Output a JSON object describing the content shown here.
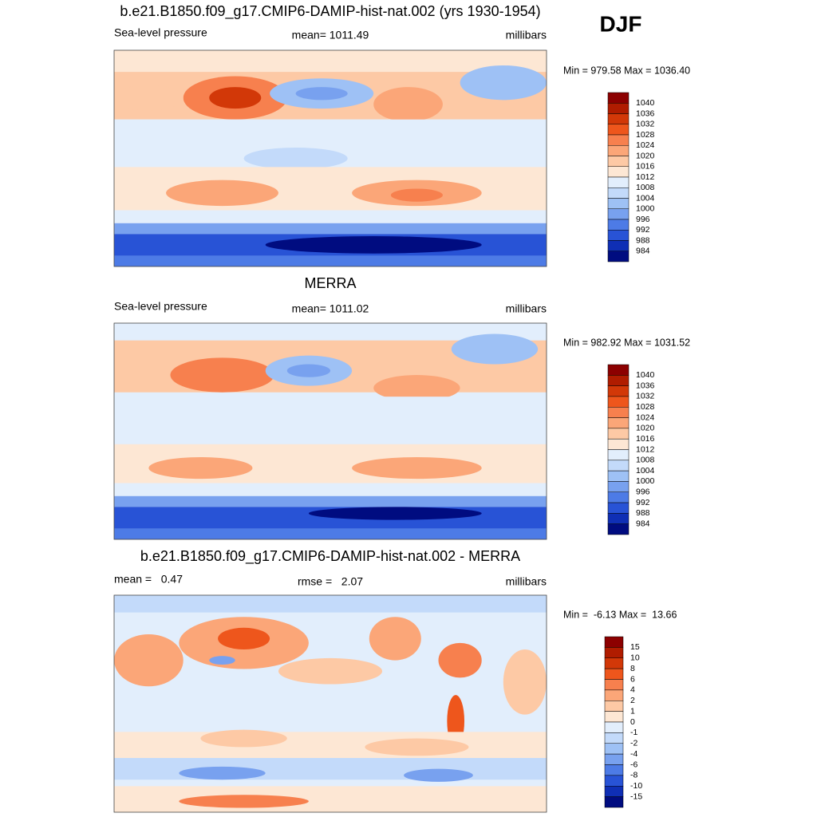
{
  "season": "DJF",
  "panels": [
    {
      "title": "b.e21.B1850.f09_g17.CMIP6-DAMIP-hist-nat.002 (yrs 1930-1954)",
      "left": "Sea-level pressure",
      "center": "mean= 1011.49",
      "right": "millibars",
      "stats": "Min = 979.58 Max = 1036.40",
      "colorbar": {
        "labels": [
          "1040",
          "1036",
          "1032",
          "1028",
          "1024",
          "1020",
          "1016",
          "1012",
          "1008",
          "1004",
          "1000",
          "996",
          "992",
          "988",
          "984"
        ],
        "colors": [
          "#8c0000",
          "#b01c00",
          "#d23808",
          "#ee561c",
          "#f7804e",
          "#fba678",
          "#fdc9a5",
          "#fde7d4",
          "#e2eefc",
          "#c3dafa",
          "#9ec1f5",
          "#78a1ef",
          "#4d7be6",
          "#2853d6",
          "#0f2fb5",
          "#000c80"
        ]
      }
    },
    {
      "title": "MERRA",
      "left": "Sea-level pressure",
      "center": "mean= 1011.02",
      "right": "millibars",
      "stats": "Min = 982.92 Max = 1031.52",
      "colorbar": {
        "labels": [
          "1040",
          "1036",
          "1032",
          "1028",
          "1024",
          "1020",
          "1016",
          "1012",
          "1008",
          "1004",
          "1000",
          "996",
          "992",
          "988",
          "984"
        ],
        "colors": [
          "#8c0000",
          "#b01c00",
          "#d23808",
          "#ee561c",
          "#f7804e",
          "#fba678",
          "#fdc9a5",
          "#fde7d4",
          "#e2eefc",
          "#c3dafa",
          "#9ec1f5",
          "#78a1ef",
          "#4d7be6",
          "#2853d6",
          "#0f2fb5",
          "#000c80"
        ]
      }
    },
    {
      "title": "b.e21.B1850.f09_g17.CMIP6-DAMIP-hist-nat.002 - MERRA",
      "left": "mean =   0.47",
      "center": "rmse =   2.07",
      "right": "millibars",
      "stats": "Min =  -6.13 Max =  13.66",
      "colorbar": {
        "labels": [
          "15",
          "10",
          "8",
          "6",
          "4",
          "2",
          "1",
          "0",
          "-1",
          "-2",
          "-4",
          "-6",
          "-8",
          "-10",
          "-15"
        ],
        "colors": [
          "#8c0000",
          "#b01c00",
          "#d23808",
          "#ee561c",
          "#f7804e",
          "#fba678",
          "#fdc9a5",
          "#fde7d4",
          "#e2eefc",
          "#c3dafa",
          "#9ec1f5",
          "#78a1ef",
          "#4d7be6",
          "#2853d6",
          "#0f2fb5",
          "#000c80"
        ]
      }
    }
  ]
}
